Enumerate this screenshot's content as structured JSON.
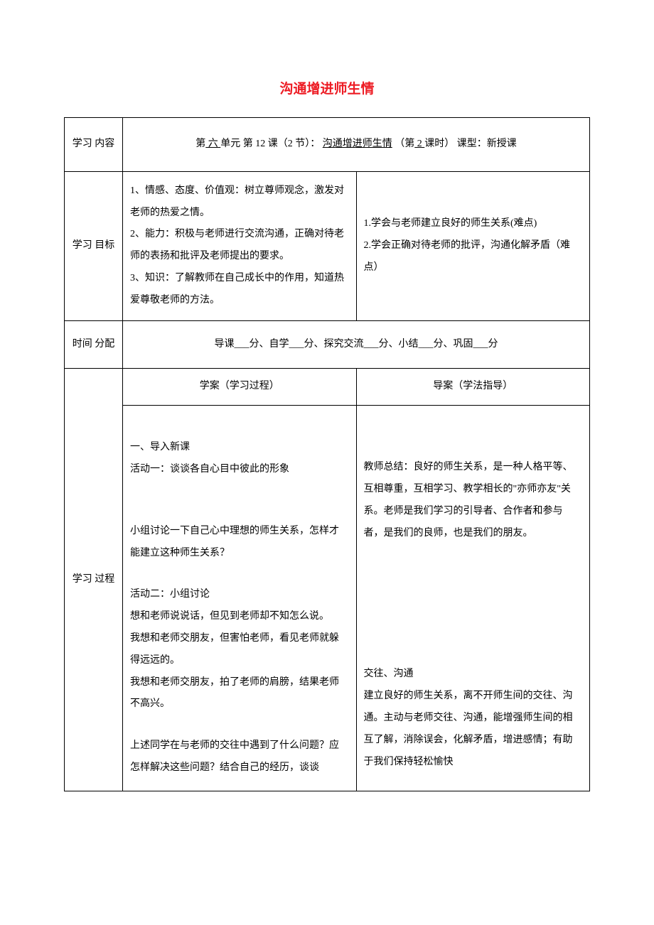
{
  "title": "沟通增进师生情",
  "rows": {
    "content_label": "学习 内容",
    "content_text": "第 六 单元 第 12 课（2 节）：  沟通增进师生情 （第 2 课时）  课型：新授课",
    "objectives_label": "学习 目标",
    "objectives_left": "1、情感、态度、价值观：树立尊师观念，激发对老师的热爱之情。\n2、能力：积极与老师进行交流沟通，正确对待老师的表扬和批评及老师提出的要求。\n3、知识：了解教师在自己成长中的作用，知道热爱尊敬老师的方法。",
    "objectives_right": "1.学会与老师建立良好的师生关系(难点)\n2.学会正确对待老师的批评，沟通化解矛盾（难点）",
    "time_label": "时间 分配",
    "time_text": "导课___分、自学___分、探究交流___分、小结___分、巩固___分",
    "process_label": "学习 过程",
    "sub_header_left": "学案（学习过程）",
    "sub_header_right": "导案（学法指导）",
    "process_left_1": "一、导入新课",
    "process_left_2": "活动一：谈谈各自心目中彼此的形象",
    "process_left_3": "小组讨论一下自己心中理想的师生关系，怎样才能建立这种师生关系？",
    "process_left_4": "活动二：小组讨论",
    "process_left_5": "想和老师说说话，但见到老师却不知怎么说。",
    "process_left_6": "我想和老师交朋友，但害怕老师，看见老师就躲得远远的。",
    "process_left_7": "我想和老师交朋友，拍了老师的肩膀，结果老师不高兴。",
    "process_left_8": "上述同学在与老师的交往中遇到了什么问题？应怎样解决这些问题？结合自己的经历，谈谈",
    "process_right_1": "教师总结：良好的师生关系，是一种人格平等、互相尊重，互相学习、教学相长的\"亦师亦友\"关系。老师是我们学习的引导者、合作者和参与者，是我们的良师，也是我们的朋友。",
    "process_right_2": "交往、沟通",
    "process_right_3": "建立良好的师生关系，离不开师生间的交往、沟通。主动与老师交往、沟通，能增强师生间的相互了解，消除误会，化解矛盾，增进感情；有助于我们保持轻松愉快"
  }
}
